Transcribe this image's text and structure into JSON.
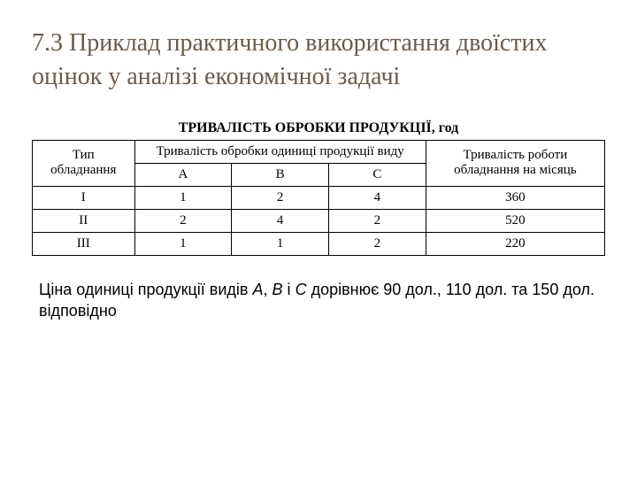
{
  "title": "7.3 Приклад практичного використання двоїстих оцінок у аналізі економічної задачі",
  "table": {
    "heading": "ТРИВАЛІСТЬ ОБРОБКИ ПРОДУКЦІЇ, год",
    "col_type": "Тип обладнання",
    "col_group": "Тривалість обробки одиниці продукції виду",
    "col_month": "Тривалість роботи обладнання на місяць",
    "sub_a": "A",
    "sub_b": "B",
    "sub_c": "C",
    "rows": [
      {
        "type": "I",
        "a": "1",
        "b": "2",
        "c": "4",
        "month": "360"
      },
      {
        "type": "II",
        "a": "2",
        "b": "4",
        "c": "2",
        "month": "520"
      },
      {
        "type": "III",
        "a": "1",
        "b": "1",
        "c": "2",
        "month": "220"
      }
    ]
  },
  "caption": {
    "p1": "Ціна одиниці продукції видів ",
    "a": "А",
    "sep1": ", ",
    "b": "В",
    "sep2": " і ",
    "c": "С",
    "p2": " дорівнює 90 дол., 110 дол. та 150 дол. відповідно"
  },
  "colors": {
    "title": "#6b5b4a",
    "text": "#000000",
    "border": "#000000",
    "background": "#ffffff"
  }
}
